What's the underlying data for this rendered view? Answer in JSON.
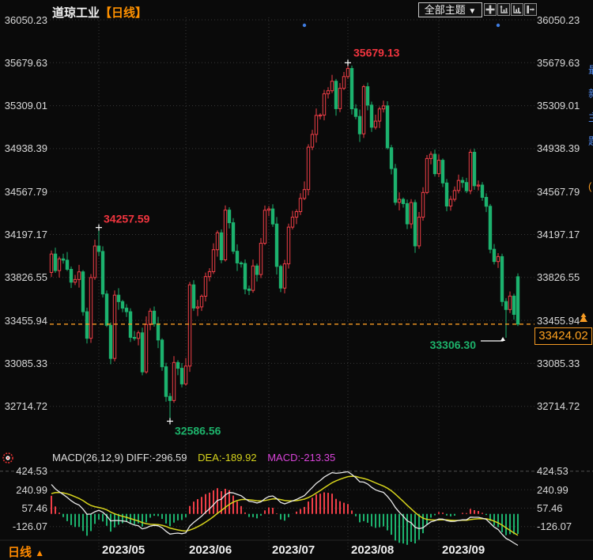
{
  "header": {
    "title": "道琼工业",
    "period_tag": "【日线】"
  },
  "toolbar": {
    "theme_dropdown_label": "全部主题",
    "dropdown_arrow": "▼",
    "icons": [
      "move-icon",
      "y-scale-icon",
      "x-scale-icon",
      "pane-shift-icon"
    ]
  },
  "price_axis": {
    "labels": [
      "36050.23",
      "35679.63",
      "35309.01",
      "34938.39",
      "34567.79",
      "34197.17",
      "33826.55",
      "33455.94",
      "33085.33",
      "32714.72"
    ]
  },
  "x_axis": {
    "labels": [
      "2023/05",
      "2023/06",
      "2023/07",
      "2023/08",
      "2023/09"
    ],
    "month_start_indices": [
      12,
      34,
      55,
      75,
      98
    ]
  },
  "macd_panel": {
    "header_main": "MACD(26,12,9) DIFF:-296.59",
    "header_dea": "DEA:-189.92",
    "header_macd": "MACD:-213.35",
    "axis_labels": [
      "424.53",
      "240.99",
      "57.46",
      "-126.07"
    ],
    "axis_values": [
      424.53,
      240.99,
      57.46,
      -126.07
    ]
  },
  "annotations": {
    "local_high": {
      "value": "34257.59",
      "index": 12
    },
    "high": {
      "value": "35679.13",
      "index": 75
    },
    "low": {
      "value": "32586.56",
      "index": 30
    },
    "recent_low": {
      "value": "33306.30",
      "index": 115
    },
    "last_price": {
      "value": "33424.02",
      "number": 33424.02
    }
  },
  "bottom_bar": {
    "period_label": "日线",
    "arrow": "▲"
  },
  "right_strip": {
    "glyphs": [
      "最",
      "新",
      "主",
      "题"
    ],
    "marker": "("
  },
  "colors": {
    "up": "#ef3e47",
    "down": "#1cb26e",
    "accent_orange": "#f59a23",
    "dea_yellow": "#d6d31c",
    "macd_magenta": "#d944d9",
    "diff_white": "#e8e8e8",
    "grid": "#383838",
    "axis_text": "#d9d9d9",
    "blue_dot": "#3f7ce0",
    "annotation_red": "#f2353f",
    "annotation_green": "#1db36b"
  },
  "event_dots": {
    "indices": [
      64,
      113
    ]
  },
  "chart_data": {
    "type": "candlestick",
    "title": "道琼工业 日线",
    "ohlc_format": [
      "open",
      "high",
      "low",
      "close"
    ],
    "macd_params": {
      "fast": 12,
      "slow": 26,
      "signal": 9,
      "seed_ema12": 34190,
      "seed_ema26": 33860,
      "seed_dea": 180
    },
    "candles": [
      [
        33870,
        34059,
        33830,
        34029
      ],
      [
        34029,
        34084,
        33866,
        33886
      ],
      [
        33886,
        34007,
        33826,
        33987
      ],
      [
        33987,
        34032,
        33946,
        33976
      ],
      [
        33976,
        34046,
        33882,
        33897
      ],
      [
        33897,
        33922,
        33736,
        33786
      ],
      [
        33786,
        33849,
        33761,
        33809
      ],
      [
        33809,
        33935,
        33739,
        33875
      ],
      [
        33875,
        33890,
        33496,
        33531
      ],
      [
        33531,
        33566,
        33257,
        33302
      ],
      [
        33302,
        33856,
        33262,
        33826
      ],
      [
        33826,
        34153,
        33806,
        34098
      ],
      [
        34098,
        34257.59,
        34010,
        34051
      ],
      [
        34051,
        34096,
        33654,
        33684
      ],
      [
        33684,
        33714,
        33399,
        33414
      ],
      [
        33414,
        33439,
        33078,
        33128
      ],
      [
        33128,
        33714,
        33103,
        33674
      ],
      [
        33674,
        33734,
        33548,
        33618
      ],
      [
        33618,
        33633,
        33527,
        33562
      ],
      [
        33562,
        33597,
        33486,
        33531
      ],
      [
        33531,
        33561,
        33270,
        33310
      ],
      [
        33310,
        33365,
        33281,
        33301
      ],
      [
        33301,
        33369,
        33241,
        33349
      ],
      [
        33349,
        33394,
        32982,
        33012
      ],
      [
        33012,
        33491,
        32997,
        33421
      ],
      [
        33421,
        33561,
        33371,
        33536
      ],
      [
        33536,
        33576,
        33402,
        33427
      ],
      [
        33427,
        33487,
        33217,
        33287
      ],
      [
        33287,
        33302,
        33021,
        33056
      ],
      [
        33056,
        33091,
        32755,
        32800
      ],
      [
        32800,
        32830,
        32586.56,
        32765
      ],
      [
        32765,
        33148,
        32745,
        33093
      ],
      [
        33093,
        33113,
        32983,
        33043
      ],
      [
        33043,
        33088,
        32878,
        32908
      ],
      [
        32908,
        33132,
        32893,
        33062
      ],
      [
        33062,
        33788,
        33012,
        33763
      ],
      [
        33763,
        33803,
        33538,
        33563
      ],
      [
        33563,
        33633,
        33493,
        33573
      ],
      [
        33573,
        33680,
        33538,
        33665
      ],
      [
        33665,
        33869,
        33620,
        33834
      ],
      [
        33834,
        33907,
        33794,
        33877
      ],
      [
        33877,
        34121,
        33857,
        34066
      ],
      [
        34066,
        34232,
        34006,
        34212
      ],
      [
        34212,
        34242,
        33949,
        33979
      ],
      [
        33979,
        34448,
        33964,
        34408
      ],
      [
        34408,
        34433,
        34249,
        34299
      ],
      [
        34299,
        34339,
        34028,
        34053
      ],
      [
        34053,
        34113,
        33882,
        33952
      ],
      [
        33952,
        33967,
        33912,
        33947
      ],
      [
        33947,
        33982,
        33682,
        33727
      ],
      [
        33727,
        33757,
        33675,
        33715
      ],
      [
        33715,
        33981,
        33695,
        33926
      ],
      [
        33926,
        33946,
        33792,
        33852
      ],
      [
        33852,
        34167,
        33822,
        34122
      ],
      [
        34122,
        34447,
        34107,
        34407
      ],
      [
        34407,
        34443,
        34357,
        34418
      ],
      [
        34418,
        34458,
        34263,
        34288
      ],
      [
        34288,
        34348,
        33852,
        33922
      ],
      [
        33922,
        33937,
        33700,
        33735
      ],
      [
        33735,
        33979,
        33690,
        33944
      ],
      [
        33944,
        34291,
        33904,
        34261
      ],
      [
        34261,
        34402,
        34241,
        34347
      ],
      [
        34347,
        34415,
        34287,
        34395
      ],
      [
        34395,
        34554,
        34365,
        34509
      ],
      [
        34509,
        34655,
        34494,
        34585
      ],
      [
        34585,
        34976,
        34535,
        34951
      ],
      [
        34951,
        35101,
        34926,
        35061
      ],
      [
        35061,
        35285,
        34991,
        35225
      ],
      [
        35225,
        35243,
        35190,
        35228
      ],
      [
        35228,
        35446,
        35183,
        35411
      ],
      [
        35411,
        35468,
        35371,
        35438
      ],
      [
        35438,
        35575,
        35418,
        35520
      ],
      [
        35520,
        35540,
        35223,
        35283
      ],
      [
        35283,
        35504,
        35253,
        35459
      ],
      [
        35459,
        35600,
        35444,
        35560
      ],
      [
        35560,
        35679.13,
        35540,
        35630
      ],
      [
        35630,
        35655,
        35232,
        35282
      ],
      [
        35282,
        35322,
        35191,
        35216
      ],
      [
        35216,
        35276,
        34996,
        35066
      ],
      [
        35066,
        35488,
        35031,
        35473
      ],
      [
        35473,
        35508,
        35269,
        35314
      ],
      [
        35314,
        35344,
        35083,
        35123
      ],
      [
        35123,
        35231,
        35103,
        35176
      ],
      [
        35176,
        35301,
        35116,
        35281
      ],
      [
        35281,
        35352,
        35251,
        35307
      ],
      [
        35307,
        35347,
        34931,
        34946
      ],
      [
        34946,
        34971,
        34716,
        34766
      ],
      [
        34766,
        34806,
        34450,
        34475
      ],
      [
        34475,
        34561,
        34405,
        34501
      ],
      [
        34501,
        34516,
        34429,
        34464
      ],
      [
        34464,
        34499,
        34244,
        34289
      ],
      [
        34289,
        34503,
        34249,
        34473
      ],
      [
        34473,
        34498,
        34039,
        34099
      ],
      [
        34099,
        34392,
        34074,
        34347
      ],
      [
        34347,
        34605,
        34317,
        34560
      ],
      [
        34560,
        34883,
        34545,
        34853
      ],
      [
        34853,
        34915,
        34803,
        34890
      ],
      [
        34890,
        34930,
        34697,
        34722
      ],
      [
        34722,
        34888,
        34692,
        34838
      ],
      [
        34838,
        34853,
        34607,
        34642
      ],
      [
        34642,
        34677,
        34398,
        34443
      ],
      [
        34443,
        34531,
        34403,
        34501
      ],
      [
        34501,
        34612,
        34481,
        34577
      ],
      [
        34577,
        34714,
        34552,
        34664
      ],
      [
        34664,
        34694,
        34601,
        34646
      ],
      [
        34646,
        34686,
        34555,
        34575
      ],
      [
        34575,
        34932,
        34545,
        34907
      ],
      [
        34907,
        34937,
        34583,
        34618
      ],
      [
        34618,
        34664,
        34578,
        34624
      ],
      [
        34624,
        34649,
        34488,
        34518
      ],
      [
        34518,
        34553,
        34391,
        34441
      ],
      [
        34441,
        34461,
        34035,
        34070
      ],
      [
        34070,
        34115,
        33939,
        33964
      ],
      [
        33964,
        34037,
        33909,
        34007
      ],
      [
        34007,
        34032,
        33579,
        33619
      ],
      [
        33619,
        33649,
        33306.3,
        33550
      ],
      [
        33550,
        33706,
        33520,
        33666
      ],
      [
        33666,
        33686,
        33463,
        33508
      ],
      [
        33833,
        33862,
        33407,
        33424.02
      ]
    ]
  }
}
